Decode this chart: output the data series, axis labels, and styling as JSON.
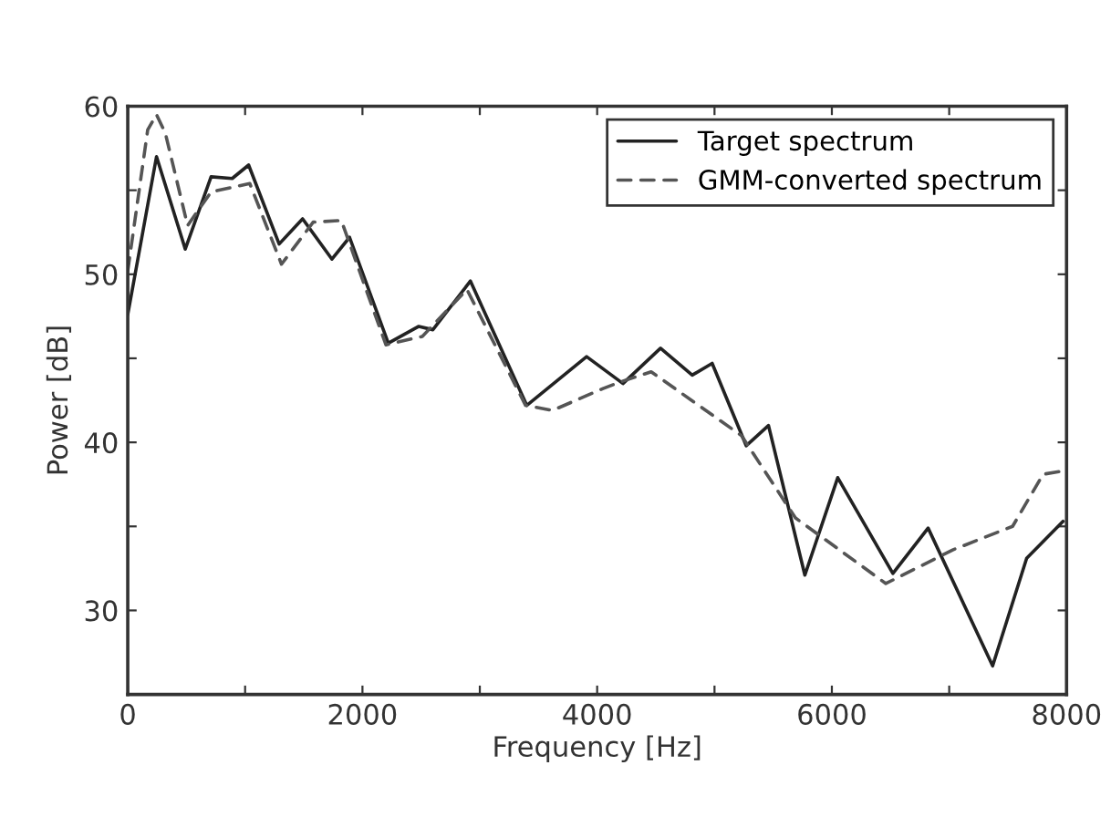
{
  "chart_data": {
    "type": "line",
    "xlabel": "Frequency [Hz]",
    "ylabel": "Power [dB]",
    "xlim": [
      0,
      8000
    ],
    "ylim": [
      25,
      60
    ],
    "xticks": [
      0,
      {
        "value": 1000,
        "label": null
      },
      2000,
      {
        "value": 3000,
        "label": null
      },
      4000,
      {
        "value": 5000,
        "label": null
      },
      6000,
      {
        "value": 7000,
        "label": null
      },
      8000
    ],
    "yticks": [
      {
        "value": 25,
        "label": null
      },
      30,
      {
        "value": 35,
        "label": null
      },
      40,
      {
        "value": 45,
        "label": null
      },
      50,
      {
        "value": 55,
        "label": null
      },
      60
    ],
    "grid": false,
    "legend": "top right",
    "marker": "none",
    "series": [
      {
        "name": "Target spectrum",
        "color": "#222222",
        "line_style": "solid",
        "x": [
          0,
          245,
          490,
          710,
          890,
          1030,
          1290,
          1490,
          1740,
          1890,
          2220,
          2480,
          2600,
          2920,
          3400,
          3910,
          4220,
          4540,
          4810,
          4980,
          5270,
          5460,
          5770,
          6050,
          6520,
          6820,
          7370,
          7660,
          7970
        ],
        "values": [
          47.6,
          57.0,
          51.5,
          55.8,
          55.7,
          56.5,
          51.8,
          53.3,
          50.9,
          52.2,
          45.9,
          46.9,
          46.7,
          49.6,
          42.2,
          45.1,
          43.5,
          45.6,
          44.0,
          44.7,
          39.8,
          41.0,
          32.1,
          37.9,
          32.2,
          34.9,
          26.7,
          33.1,
          35.3
        ]
      },
      {
        "name": "GMM-converted spectrum",
        "color": "#555555",
        "line_style": "dashed",
        "x": [
          0,
          170,
          245,
          320,
          510,
          710,
          1040,
          1310,
          1580,
          1820,
          2200,
          2510,
          2890,
          3390,
          3620,
          4050,
          4200,
          4460,
          5230,
          5690,
          6460,
          7030,
          7540,
          7800,
          7970
        ],
        "values": [
          50.2,
          58.6,
          59.5,
          58.4,
          52.9,
          54.9,
          55.4,
          50.6,
          53.1,
          53.2,
          45.8,
          46.3,
          49.1,
          42.2,
          41.9,
          43.2,
          43.6,
          44.2,
          40.4,
          35.5,
          31.6,
          33.6,
          35.0,
          38.1,
          38.3
        ]
      }
    ]
  }
}
